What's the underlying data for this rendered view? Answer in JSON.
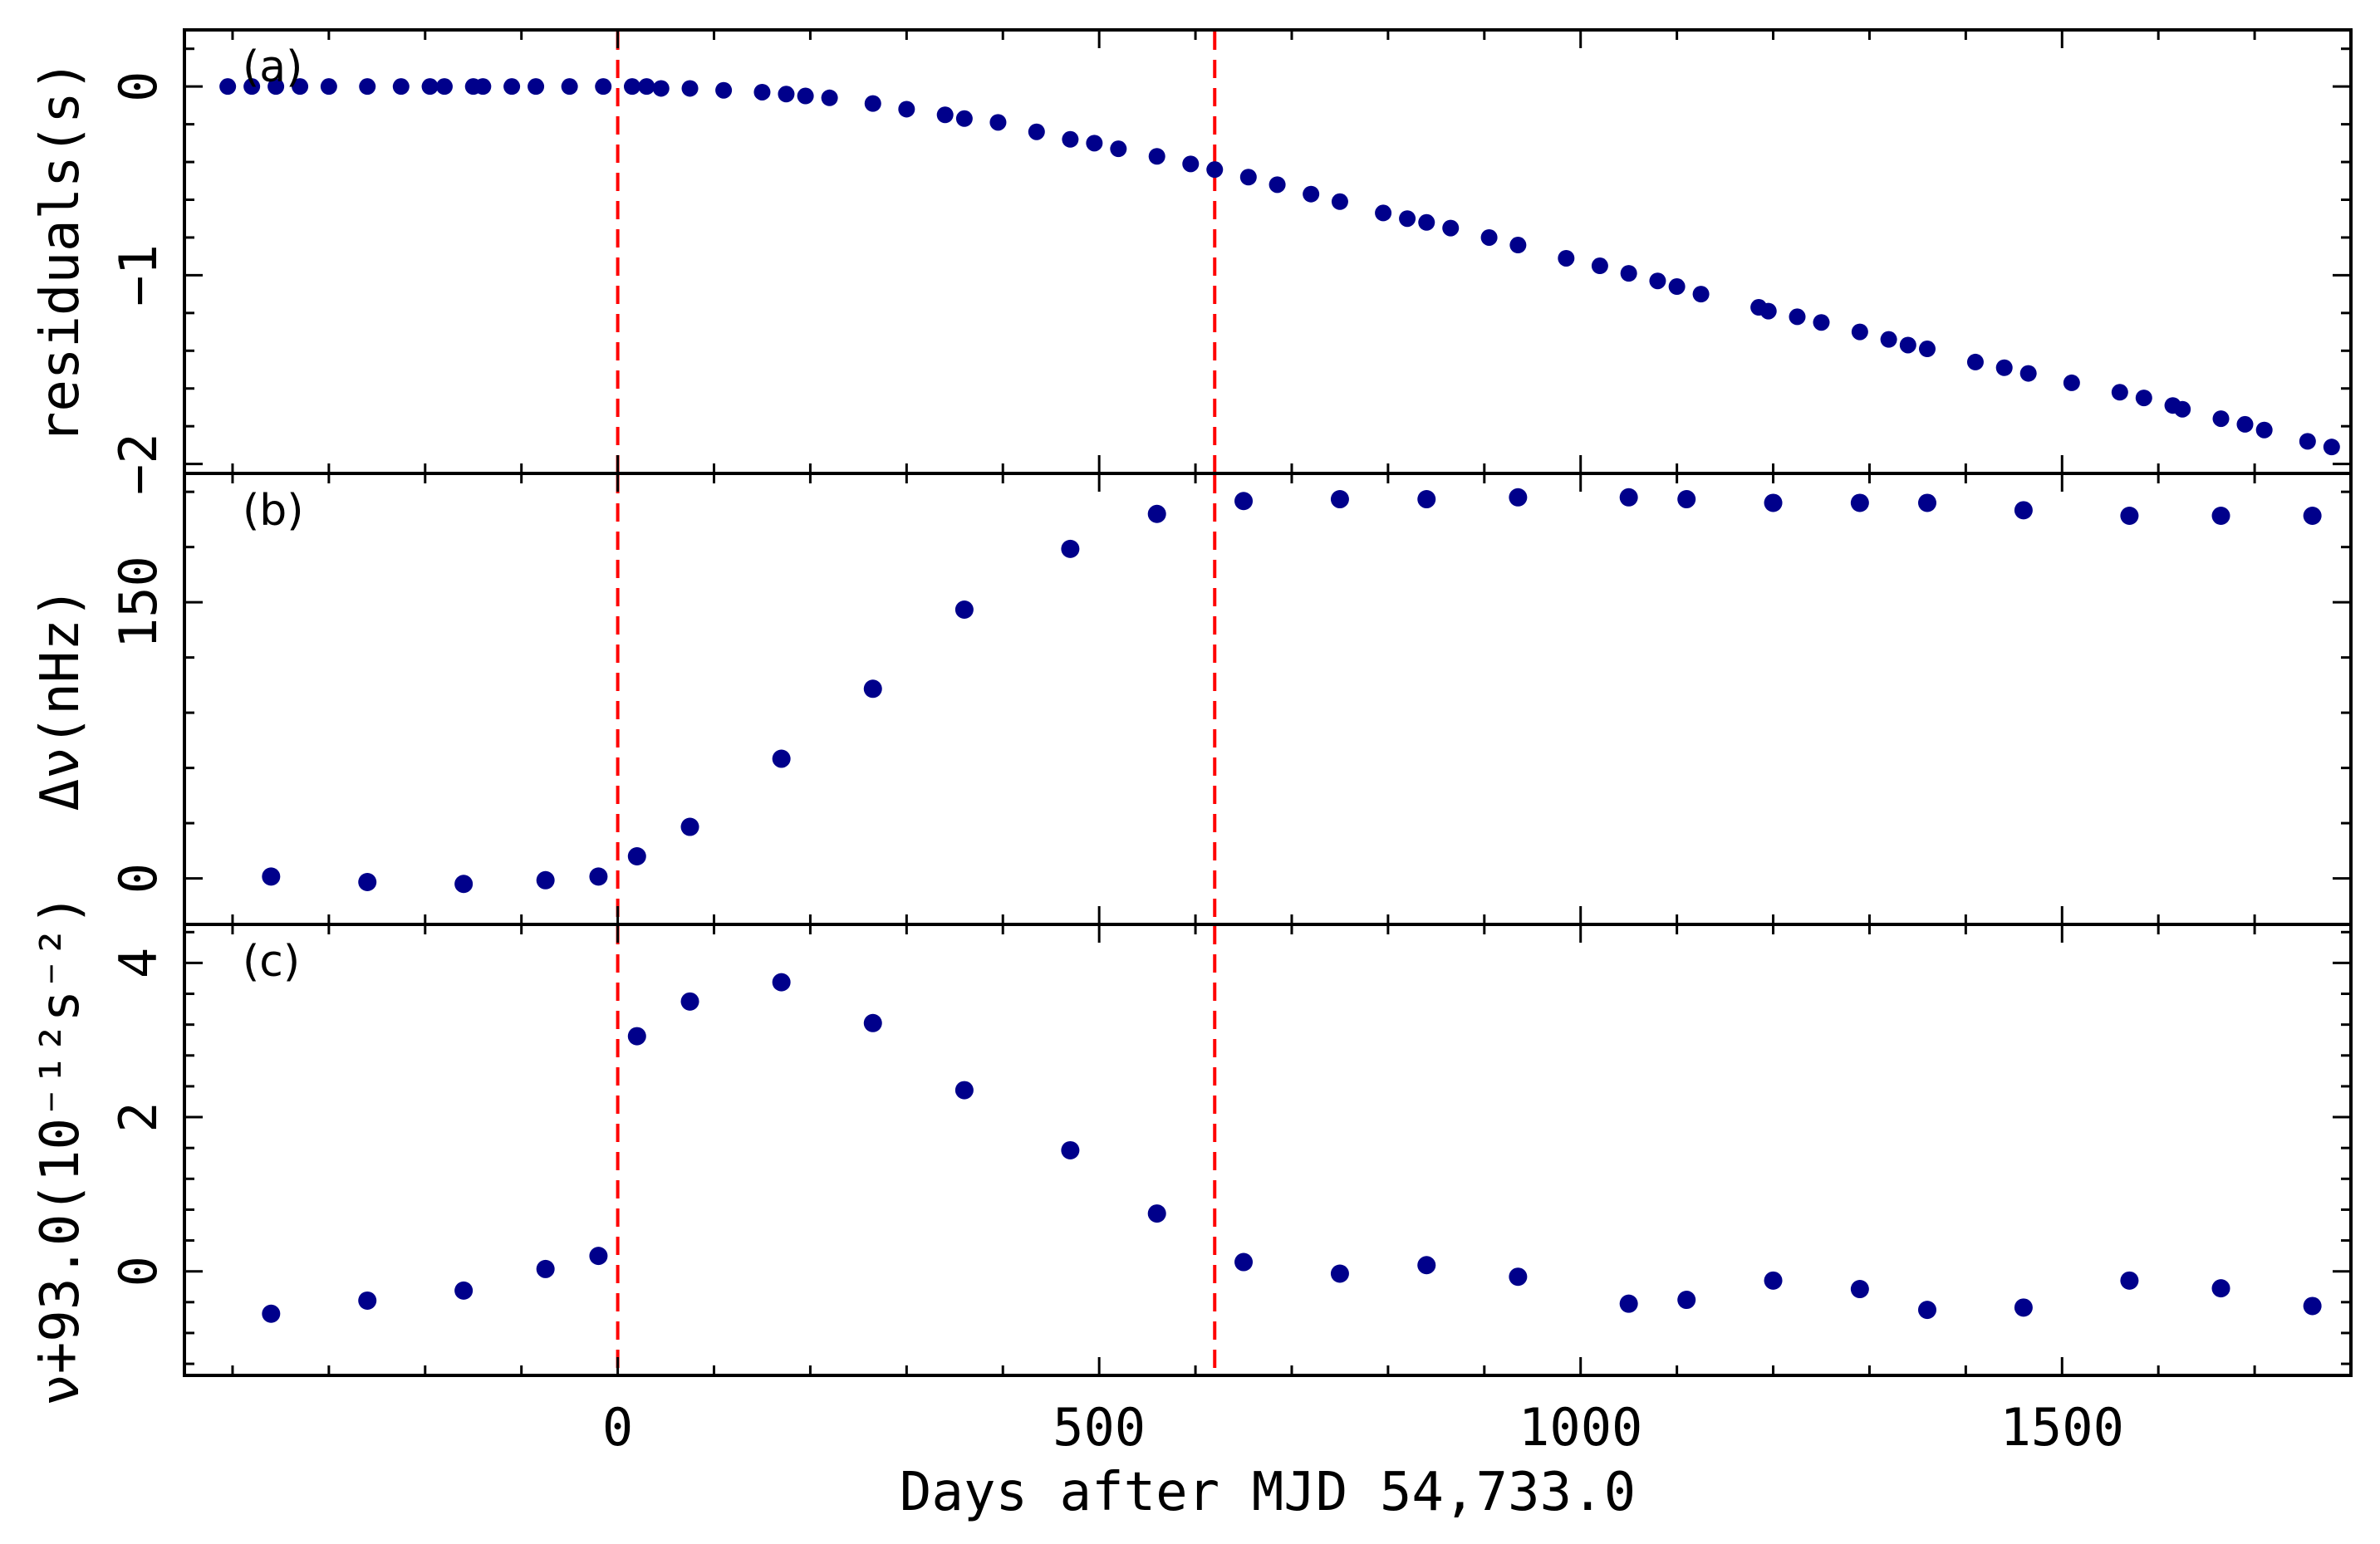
{
  "chart_data": {
    "type": "scatter",
    "xlabel": "Days after MJD 54,733.0",
    "xlim": [
      -450,
      1800
    ],
    "xticks": [
      0,
      500,
      1000,
      1500
    ],
    "xtick_labels": [
      "0",
      "500",
      "1000",
      "1500"
    ],
    "vlines": [
      0,
      620
    ],
    "vline_color": "#ff0000",
    "marker_color": "#00008b",
    "panels": [
      {
        "tag": "(a)",
        "ylabel": "residuals(s)",
        "ylim": [
          -2.05,
          0.3
        ],
        "yticks": [
          0,
          -1,
          -2
        ],
        "ytick_labels": [
          "0",
          "−1",
          "−2"
        ],
        "x": [
          -405,
          -380,
          -355,
          -330,
          -300,
          -260,
          -225,
          -195,
          -180,
          -150,
          -140,
          -110,
          -85,
          -50,
          -15,
          15,
          30,
          45,
          75,
          110,
          150,
          175,
          195,
          220,
          265,
          300,
          340,
          360,
          395,
          435,
          470,
          495,
          520,
          560,
          595,
          620,
          655,
          685,
          720,
          750,
          795,
          820,
          840,
          865,
          905,
          935,
          985,
          1020,
          1050,
          1080,
          1100,
          1125,
          1185,
          1195,
          1225,
          1250,
          1290,
          1320,
          1340,
          1360,
          1410,
          1440,
          1465,
          1510,
          1560,
          1585,
          1615,
          1625,
          1665,
          1690,
          1710,
          1755,
          1780
        ],
        "y": [
          0.0,
          0.0,
          0.0,
          0.0,
          0.0,
          0.0,
          0.0,
          0.0,
          0.0,
          0.0,
          0.0,
          0.0,
          0.0,
          0.0,
          0.0,
          0.0,
          0.0,
          -0.01,
          -0.01,
          -0.02,
          -0.03,
          -0.04,
          -0.05,
          -0.06,
          -0.09,
          -0.12,
          -0.15,
          -0.17,
          -0.19,
          -0.24,
          -0.28,
          -0.3,
          -0.33,
          -0.37,
          -0.41,
          -0.44,
          -0.48,
          -0.52,
          -0.57,
          -0.61,
          -0.67,
          -0.7,
          -0.72,
          -0.75,
          -0.8,
          -0.84,
          -0.91,
          -0.95,
          -0.99,
          -1.03,
          -1.06,
          -1.1,
          -1.17,
          -1.19,
          -1.22,
          -1.25,
          -1.3,
          -1.34,
          -1.37,
          -1.39,
          -1.46,
          -1.49,
          -1.52,
          -1.57,
          -1.62,
          -1.65,
          -1.69,
          -1.71,
          -1.76,
          -1.79,
          -1.82,
          -1.88,
          -1.91
        ]
      },
      {
        "tag": "(b)",
        "ylabel": "Δν(nHz)",
        "ylim": [
          -25,
          220
        ],
        "yticks": [
          0,
          150
        ],
        "ytick_labels": [
          "0",
          "150"
        ],
        "x": [
          -360,
          -260,
          -160,
          -75,
          -20,
          20,
          75,
          170,
          265,
          360,
          470,
          560,
          650,
          750,
          840,
          935,
          1050,
          1110,
          1200,
          1290,
          1360,
          1460,
          1570,
          1665,
          1760
        ],
        "y": [
          1,
          -2,
          -3,
          -1,
          1,
          12,
          28,
          65,
          103,
          146,
          179,
          198,
          205,
          206,
          206,
          207,
          207,
          206,
          204,
          204,
          204,
          200,
          197,
          197,
          197
        ]
      },
      {
        "tag": "(c)",
        "ylabel": "ν̇+93.0(10⁻¹²s⁻²)",
        "ylim": [
          -1.35,
          4.5
        ],
        "yticks": [
          0,
          2,
          4
        ],
        "ytick_labels": [
          "0",
          "2",
          "4"
        ],
        "x": [
          -360,
          -260,
          -160,
          -75,
          -20,
          20,
          75,
          170,
          265,
          360,
          470,
          560,
          650,
          750,
          840,
          935,
          1050,
          1110,
          1200,
          1290,
          1360,
          1460,
          1570,
          1665,
          1760
        ],
        "y": [
          -0.55,
          -0.38,
          -0.25,
          0.03,
          0.2,
          3.05,
          3.5,
          3.75,
          3.22,
          2.35,
          1.57,
          0.75,
          0.12,
          -0.03,
          0.08,
          -0.07,
          -0.42,
          -0.37,
          -0.12,
          -0.23,
          -0.5,
          -0.47,
          -0.12,
          -0.22,
          -0.45
        ]
      }
    ]
  }
}
